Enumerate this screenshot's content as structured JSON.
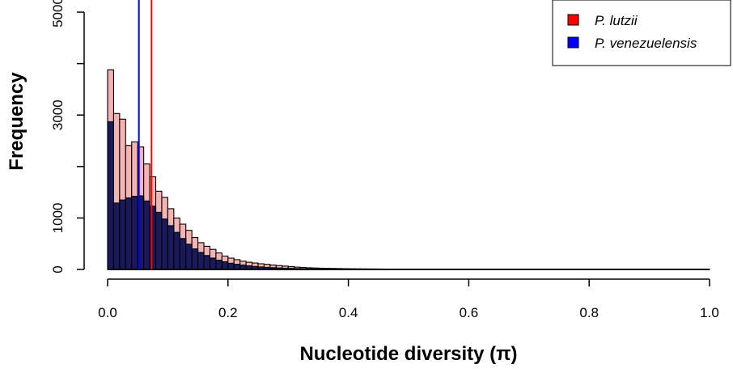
{
  "chart_data": {
    "type": "histogram",
    "title": "",
    "xlabel": "Nucleotide diversity (π)",
    "ylabel": "Frequency",
    "xlim": [
      0.0,
      1.0
    ],
    "ylim": [
      0,
      5000
    ],
    "xticks": [
      0.0,
      0.2,
      0.4,
      0.6,
      0.8,
      1.0
    ],
    "xtick_labels": [
      "0.0",
      "0.2",
      "0.4",
      "0.6",
      "0.8",
      "1.0"
    ],
    "yticks": [
      0,
      1000,
      2000,
      3000,
      4000,
      5000
    ],
    "ytick_labels": [
      "0",
      "1000",
      "",
      "3000",
      "",
      "5000"
    ],
    "bin_width": 0.01,
    "grid": false,
    "legend_position": "top-right",
    "series": [
      {
        "name": "P. lutzii",
        "legend_color": "#ff0000",
        "fill": "#f4b4b4",
        "mean_line": 0.073,
        "mean_line_color": "#ff0000",
        "values": [
          3880,
          3030,
          2920,
          2410,
          2480,
          2380,
          2050,
          1800,
          1520,
          1400,
          1180,
          1000,
          880,
          760,
          620,
          520,
          450,
          390,
          320,
          260,
          220,
          190,
          160,
          140,
          125,
          110,
          100,
          85,
          75,
          65,
          55,
          45,
          38,
          32,
          28,
          24,
          21,
          19,
          17,
          15,
          13,
          12,
          11,
          10,
          9,
          8,
          7,
          7,
          6,
          6,
          5,
          5,
          5,
          4,
          4,
          4,
          3,
          3,
          3,
          3,
          3,
          2,
          2,
          2,
          2,
          2,
          2,
          2,
          1,
          1,
          1,
          1,
          1,
          1,
          1,
          1,
          1,
          1,
          1,
          1,
          1,
          1,
          1,
          1,
          1,
          1,
          1,
          1,
          1,
          1,
          1,
          1,
          1,
          1,
          1,
          1,
          1,
          1,
          1,
          1
        ]
      },
      {
        "name": "P. venezuelensis",
        "legend_color": "#0000ff",
        "fill": "#1a1a5a",
        "mean_line": 0.052,
        "mean_line_color": "#0000ff",
        "values": [
          2870,
          1290,
          1350,
          1390,
          1420,
          1430,
          1330,
          1230,
          1110,
          980,
          850,
          720,
          600,
          490,
          400,
          330,
          270,
          220,
          180,
          150,
          120,
          100,
          85,
          70,
          58,
          48,
          40,
          34,
          28,
          24,
          20,
          17,
          14,
          12,
          10,
          9,
          8,
          7,
          6,
          5,
          4,
          4,
          3,
          3,
          3,
          2,
          2,
          2,
          2,
          2,
          1,
          1,
          1,
          1,
          1,
          1,
          1,
          1,
          1,
          1,
          1,
          1,
          1,
          1,
          1,
          1,
          1,
          1,
          1,
          1,
          1,
          1,
          1,
          1,
          1,
          1,
          1,
          1,
          1,
          1,
          1,
          1,
          1,
          1,
          1,
          1,
          1,
          1,
          1,
          1,
          1,
          1,
          1,
          1,
          1,
          1,
          1,
          1,
          1,
          1
        ]
      }
    ]
  }
}
